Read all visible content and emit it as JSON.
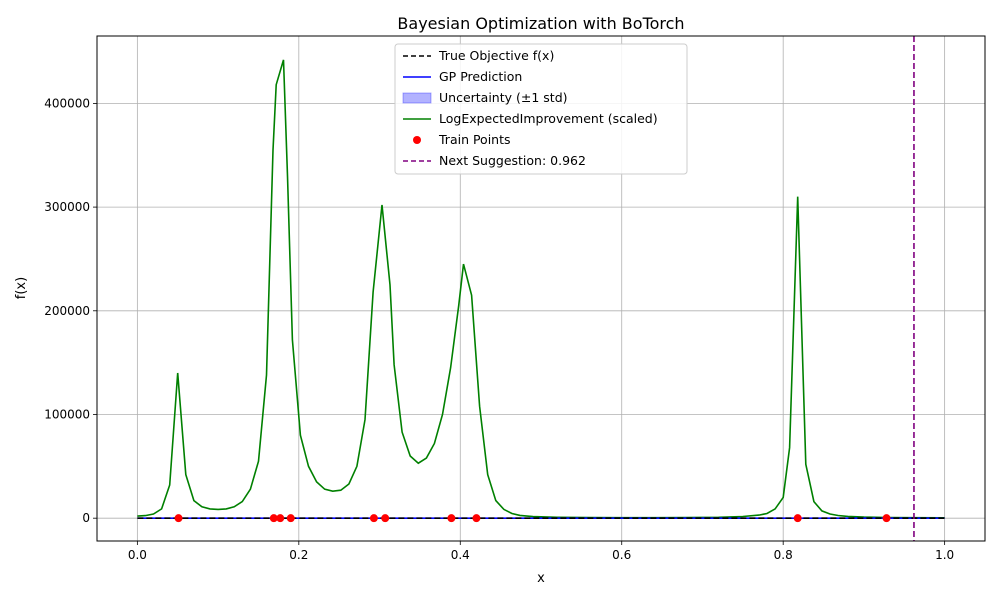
{
  "chart_data": {
    "type": "line",
    "title": "Bayesian Optimization with BoTorch",
    "xlabel": "x",
    "ylabel": "f(x)",
    "xlim": [
      -0.05,
      1.05
    ],
    "ylim": [
      -22000,
      465000
    ],
    "xticks": [
      0.0,
      0.2,
      0.4,
      0.6,
      0.8,
      1.0
    ],
    "xtick_labels": [
      "0.0",
      "0.2",
      "0.4",
      "0.6",
      "0.8",
      "1.0"
    ],
    "yticks": [
      0,
      100000,
      200000,
      300000,
      400000
    ],
    "ytick_labels": [
      "0",
      "100000",
      "200000",
      "300000",
      "400000"
    ],
    "grid": true,
    "legend_position": "top-center",
    "legend": [
      {
        "label": "True Objective f(x)",
        "kind": "dashed-line",
        "color": "#000000"
      },
      {
        "label": "GP Prediction",
        "kind": "line",
        "color": "#0000ff"
      },
      {
        "label": "Uncertainty (±1 std)",
        "kind": "patch",
        "color": "#0000ff"
      },
      {
        "label": "LogExpectedImprovement (scaled)",
        "kind": "line",
        "color": "#008000"
      },
      {
        "label": "Train Points",
        "kind": "marker",
        "color": "#ff0000"
      },
      {
        "label": "Next Suggestion: 0.962",
        "kind": "dashed-line",
        "color": "#800080"
      }
    ],
    "series": [
      {
        "name": "LogExpectedImprovement (scaled)",
        "color": "#008000",
        "points": [
          [
            0.0,
            2000
          ],
          [
            0.01,
            2500
          ],
          [
            0.02,
            4000
          ],
          [
            0.03,
            9000
          ],
          [
            0.04,
            32000
          ],
          [
            0.05,
            140000
          ],
          [
            0.06,
            42000
          ],
          [
            0.07,
            17000
          ],
          [
            0.08,
            11000
          ],
          [
            0.09,
            9000
          ],
          [
            0.1,
            8500
          ],
          [
            0.11,
            9000
          ],
          [
            0.12,
            11000
          ],
          [
            0.13,
            16000
          ],
          [
            0.14,
            28000
          ],
          [
            0.15,
            55000
          ],
          [
            0.16,
            138000
          ],
          [
            0.168,
            355000
          ],
          [
            0.172,
            418000
          ],
          [
            0.181,
            442000
          ],
          [
            0.186,
            330000
          ],
          [
            0.192,
            172000
          ],
          [
            0.202,
            80000
          ],
          [
            0.212,
            50000
          ],
          [
            0.222,
            35000
          ],
          [
            0.232,
            28000
          ],
          [
            0.242,
            26000
          ],
          [
            0.252,
            27000
          ],
          [
            0.262,
            33000
          ],
          [
            0.272,
            50000
          ],
          [
            0.282,
            95000
          ],
          [
            0.292,
            218000
          ],
          [
            0.303,
            302000
          ],
          [
            0.313,
            225000
          ],
          [
            0.318,
            148000
          ],
          [
            0.328,
            83000
          ],
          [
            0.338,
            60000
          ],
          [
            0.348,
            53000
          ],
          [
            0.358,
            58000
          ],
          [
            0.368,
            72000
          ],
          [
            0.378,
            100000
          ],
          [
            0.388,
            145000
          ],
          [
            0.398,
            205000
          ],
          [
            0.404,
            245000
          ],
          [
            0.414,
            215000
          ],
          [
            0.424,
            108000
          ],
          [
            0.434,
            42000
          ],
          [
            0.444,
            17000
          ],
          [
            0.454,
            8500
          ],
          [
            0.464,
            4500
          ],
          [
            0.474,
            2700
          ],
          [
            0.49,
            1500
          ],
          [
            0.52,
            900
          ],
          [
            0.56,
            600
          ],
          [
            0.6,
            500
          ],
          [
            0.64,
            500
          ],
          [
            0.68,
            600
          ],
          [
            0.72,
            900
          ],
          [
            0.75,
            1600
          ],
          [
            0.77,
            3000
          ],
          [
            0.78,
            4500
          ],
          [
            0.79,
            9000
          ],
          [
            0.8,
            20000
          ],
          [
            0.808,
            68000
          ],
          [
            0.818,
            310000
          ],
          [
            0.828,
            52000
          ],
          [
            0.838,
            16000
          ],
          [
            0.848,
            7000
          ],
          [
            0.858,
            4000
          ],
          [
            0.868,
            2600
          ],
          [
            0.88,
            1700
          ],
          [
            0.9,
            1000
          ],
          [
            0.93,
            700
          ],
          [
            0.96,
            500
          ],
          [
            1.0,
            400
          ]
        ]
      },
      {
        "name": "GP Prediction",
        "color": "#0000ff",
        "points": [
          [
            0.0,
            0
          ],
          [
            0.2,
            0
          ],
          [
            0.4,
            0
          ],
          [
            0.6,
            0
          ],
          [
            0.8,
            0
          ],
          [
            1.0,
            0
          ]
        ]
      },
      {
        "name": "True Objective f(x)",
        "color": "#000000",
        "points": [
          [
            0.0,
            0
          ],
          [
            0.2,
            0
          ],
          [
            0.4,
            0
          ],
          [
            0.6,
            0
          ],
          [
            0.8,
            0
          ],
          [
            1.0,
            0
          ]
        ]
      }
    ],
    "train_points": [
      [
        0.051,
        0
      ],
      [
        0.169,
        0
      ],
      [
        0.177,
        0
      ],
      [
        0.19,
        0
      ],
      [
        0.293,
        0
      ],
      [
        0.307,
        0
      ],
      [
        0.389,
        0
      ],
      [
        0.42,
        0
      ],
      [
        0.818,
        0
      ],
      [
        0.928,
        0
      ]
    ],
    "next_suggestion_x": 0.962
  }
}
